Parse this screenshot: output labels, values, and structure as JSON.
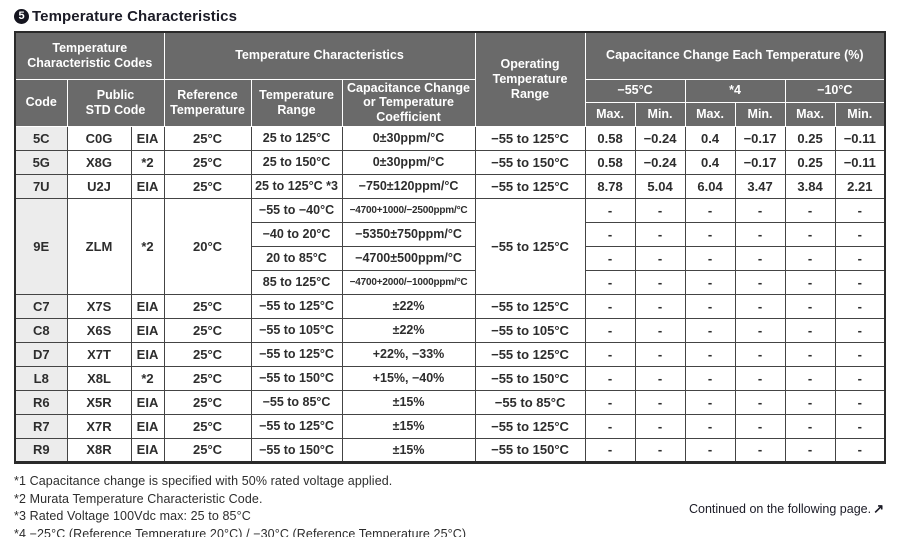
{
  "page": {
    "badge": "5",
    "title": "Temperature Characteristics"
  },
  "colors": {
    "header_bg": "#6a6a6a",
    "header_text": "#ffffff",
    "code_column_bg": "#ececec",
    "border_dark": "#444444",
    "outer_border": "#2a2a2a"
  },
  "table": {
    "header": {
      "temp_char_codes": "Temperature\nCharacteristic Codes",
      "code": "Code",
      "public_std_code": "Public\nSTD Code",
      "temp_characteristics": "Temperature Characteristics",
      "reference_temperature": "Reference\nTemperature",
      "temperature_range": "Temperature\nRange",
      "cap_change_or_coeff": "Capacitance Change\nor Temperature\nCoefficient",
      "operating_temp_range": "Operating\nTemperature\nRange",
      "cap_change_each_temp": "Capacitance Change Each Temperature (%)",
      "temp_groups": [
        "−55°C",
        "*4",
        "−10°C"
      ],
      "max_label": "Max.",
      "min_label": "Min."
    },
    "rows": [
      {
        "code": "5C",
        "public_std": "C0G",
        "std_org": "EIA",
        "ref_temp": "25°C",
        "op_range": "−55 to 125°C",
        "segments": [
          {
            "range": "25 to 125°C",
            "coeff": "0±30ppm/°C",
            "condensed": false,
            "values": [
              "0.58",
              "−0.24",
              "0.4",
              "−0.17",
              "0.25",
              "−0.11"
            ]
          }
        ]
      },
      {
        "code": "5G",
        "public_std": "X8G",
        "std_org": "*2",
        "ref_temp": "25°C",
        "op_range": "−55 to 150°C",
        "segments": [
          {
            "range": "25 to 150°C",
            "coeff": "0±30ppm/°C",
            "condensed": false,
            "values": [
              "0.58",
              "−0.24",
              "0.4",
              "−0.17",
              "0.25",
              "−0.11"
            ]
          }
        ]
      },
      {
        "code": "7U",
        "public_std": "U2J",
        "std_org": "EIA",
        "ref_temp": "25°C",
        "op_range": "−55 to 125°C",
        "segments": [
          {
            "range": "25 to 125°C *3",
            "coeff": "−750±120ppm/°C",
            "condensed": false,
            "values": [
              "8.78",
              "5.04",
              "6.04",
              "3.47",
              "3.84",
              "2.21"
            ]
          }
        ]
      },
      {
        "code": "9E",
        "public_std": "ZLM",
        "std_org": "*2",
        "ref_temp": "20°C",
        "op_range": "−55 to 125°C",
        "segments": [
          {
            "range": "−55 to −40°C",
            "coeff": "−4700+1000/−2500ppm/°C",
            "condensed": true,
            "values": [
              "-",
              "-",
              "-",
              "-",
              "-",
              "-"
            ]
          },
          {
            "range": "−40 to 20°C",
            "coeff": "−5350±750ppm/°C",
            "condensed": false,
            "values": [
              "-",
              "-",
              "-",
              "-",
              "-",
              "-"
            ]
          },
          {
            "range": "20 to 85°C",
            "coeff": "−4700±500ppm/°C",
            "condensed": false,
            "values": [
              "-",
              "-",
              "-",
              "-",
              "-",
              "-"
            ]
          },
          {
            "range": "85 to 125°C",
            "coeff": "−4700+2000/−1000ppm/°C",
            "condensed": true,
            "values": [
              "-",
              "-",
              "-",
              "-",
              "-",
              "-"
            ]
          }
        ]
      },
      {
        "code": "C7",
        "public_std": "X7S",
        "std_org": "EIA",
        "ref_temp": "25°C",
        "op_range": "−55 to 125°C",
        "segments": [
          {
            "range": "−55 to 125°C",
            "coeff": "±22%",
            "condensed": false,
            "values": [
              "-",
              "-",
              "-",
              "-",
              "-",
              "-"
            ]
          }
        ]
      },
      {
        "code": "C8",
        "public_std": "X6S",
        "std_org": "EIA",
        "ref_temp": "25°C",
        "op_range": "−55 to 105°C",
        "segments": [
          {
            "range": "−55 to 105°C",
            "coeff": "±22%",
            "condensed": false,
            "values": [
              "-",
              "-",
              "-",
              "-",
              "-",
              "-"
            ]
          }
        ]
      },
      {
        "code": "D7",
        "public_std": "X7T",
        "std_org": "EIA",
        "ref_temp": "25°C",
        "op_range": "−55 to 125°C",
        "segments": [
          {
            "range": "−55 to 125°C",
            "coeff": "+22%, −33%",
            "condensed": false,
            "values": [
              "-",
              "-",
              "-",
              "-",
              "-",
              "-"
            ]
          }
        ]
      },
      {
        "code": "L8",
        "public_std": "X8L",
        "std_org": "*2",
        "ref_temp": "25°C",
        "op_range": "−55 to 150°C",
        "segments": [
          {
            "range": "−55 to 150°C",
            "coeff": "+15%, −40%",
            "condensed": false,
            "values": [
              "-",
              "-",
              "-",
              "-",
              "-",
              "-"
            ]
          }
        ]
      },
      {
        "code": "R6",
        "public_std": "X5R",
        "std_org": "EIA",
        "ref_temp": "25°C",
        "op_range": "−55 to 85°C",
        "segments": [
          {
            "range": "−55 to 85°C",
            "coeff": "±15%",
            "condensed": false,
            "values": [
              "-",
              "-",
              "-",
              "-",
              "-",
              "-"
            ]
          }
        ]
      },
      {
        "code": "R7",
        "public_std": "X7R",
        "std_org": "EIA",
        "ref_temp": "25°C",
        "op_range": "−55 to 125°C",
        "segments": [
          {
            "range": "−55 to 125°C",
            "coeff": "±15%",
            "condensed": false,
            "values": [
              "-",
              "-",
              "-",
              "-",
              "-",
              "-"
            ]
          }
        ]
      },
      {
        "code": "R9",
        "public_std": "X8R",
        "std_org": "EIA",
        "ref_temp": "25°C",
        "op_range": "−55 to 150°C",
        "segments": [
          {
            "range": "−55 to 150°C",
            "coeff": "±15%",
            "condensed": false,
            "values": [
              "-",
              "-",
              "-",
              "-",
              "-",
              "-"
            ]
          }
        ]
      }
    ]
  },
  "footnotes": [
    "*1 Capacitance change is specified with 50% rated voltage applied.",
    "*2 Murata Temperature Characteristic Code.",
    "*3 Rated Voltage 100Vdc max: 25 to 85°C",
    "*4 −25°C (Reference Temperature 20°C) / −30°C (Reference Temperature 25°C)"
  ],
  "continued": {
    "label": "Continued on the following page.",
    "icon": "↗"
  }
}
